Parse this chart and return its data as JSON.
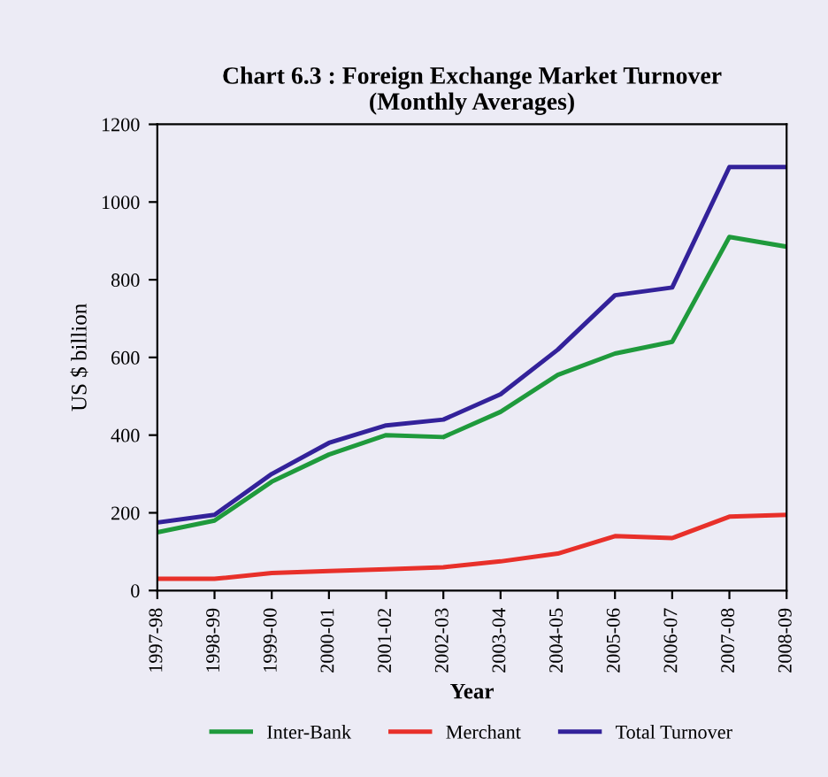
{
  "chart_data": {
    "type": "line",
    "title": "Chart 6.3 : Foreign Exchange Market Turnover\n(Monthly Averages)",
    "xlabel": "Year",
    "ylabel": "US $ billion",
    "categories": [
      "1997-98",
      "1998-99",
      "1999-00",
      "2000-01",
      "2001-02",
      "2002-03",
      "2003-04",
      "2004-05",
      "2005-06",
      "2006-07",
      "2007-08",
      "2008-09"
    ],
    "series": [
      {
        "name": "Inter-Bank",
        "color": "#1f9a3c",
        "values": [
          150,
          180,
          280,
          350,
          400,
          395,
          460,
          555,
          610,
          640,
          910,
          885
        ]
      },
      {
        "name": "Merchant",
        "color": "#e8302a",
        "values": [
          30,
          30,
          45,
          50,
          55,
          60,
          75,
          95,
          140,
          135,
          190,
          195
        ]
      },
      {
        "name": "Total Turnover",
        "color": "#33229a",
        "values": [
          175,
          195,
          300,
          380,
          425,
          440,
          505,
          620,
          760,
          780,
          1090,
          1090
        ]
      }
    ],
    "ylim": [
      0,
      1200
    ],
    "yticks": [
      0,
      200,
      400,
      600,
      800,
      1000,
      1200
    ],
    "grid": false,
    "legend": "bottom",
    "marker": "none",
    "line_style": "solid"
  }
}
